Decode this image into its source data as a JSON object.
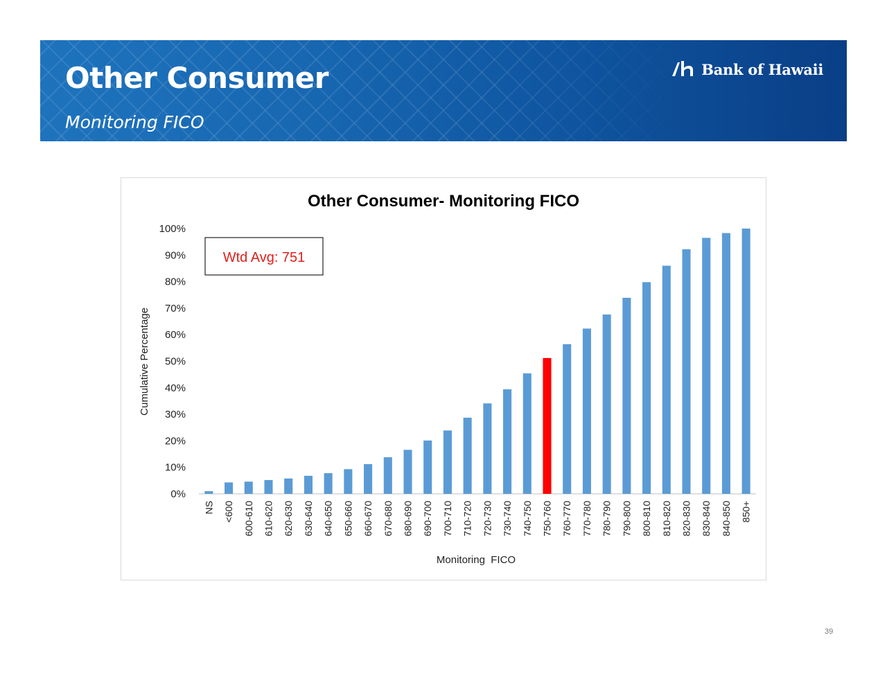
{
  "header": {
    "title": "Other Consumer",
    "subtitle": "Monitoring FICO",
    "logo_text": "Bank of Hawaii",
    "colors": {
      "banner_left": "#1e73bd",
      "banner_right": "#0a3f86"
    }
  },
  "chart_data": {
    "type": "bar",
    "title": "Other Consumer- Monitoring FICO",
    "xlabel": "Monitoring  FICO",
    "ylabel": "Cumulative Percentage",
    "ylim": [
      0,
      100
    ],
    "yticks": [
      "0%",
      "10%",
      "20%",
      "30%",
      "40%",
      "50%",
      "60%",
      "70%",
      "80%",
      "90%",
      "100%"
    ],
    "grid": false,
    "categories": [
      "NS",
      "<600",
      "600-610",
      "610-620",
      "620-630",
      "630-640",
      "640-650",
      "650-660",
      "660-670",
      "670-680",
      "680-690",
      "690-700",
      "700-710",
      "710-720",
      "720-730",
      "730-740",
      "740-750",
      "750-760",
      "760-770",
      "770-780",
      "780-790",
      "790-800",
      "800-810",
      "810-820",
      "820-830",
      "830-840",
      "840-850",
      "850+"
    ],
    "values": [
      1.0,
      4.3,
      4.6,
      5.2,
      5.8,
      6.8,
      7.8,
      9.3,
      11.2,
      13.8,
      16.6,
      20.1,
      23.9,
      28.7,
      34.1,
      39.4,
      45.4,
      51.2,
      56.4,
      62.3,
      67.6,
      73.9,
      79.8,
      86.0,
      92.2,
      96.5,
      98.3,
      100.0
    ],
    "bar_color": "#5b9bd5",
    "highlight_category": "750-760",
    "highlight_color": "#ff0000",
    "annotation": {
      "label": "Wtd Avg: 751",
      "color": "#e0201b"
    }
  },
  "footer": {
    "page_number": "39"
  }
}
